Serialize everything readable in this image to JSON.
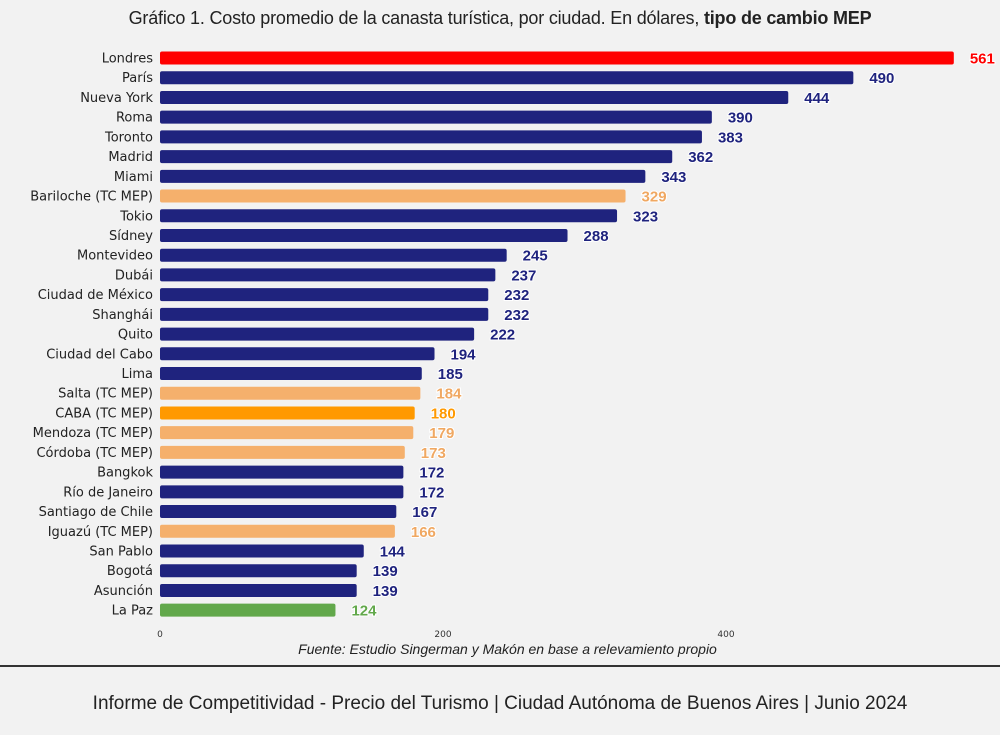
{
  "chart_data": {
    "type": "bar",
    "orientation": "horizontal",
    "title": "Gráfico 1. Costo promedio de la canasta turística, por ciudad. En dólares,",
    "title_bold": "tipo de cambio MEP",
    "xlabel": "",
    "ylabel": "",
    "xlim": [
      0,
      600
    ],
    "xticks": [
      0,
      200,
      400,
      600
    ],
    "grid": false,
    "categories": [
      "Londres",
      "París",
      "Nueva York",
      "Roma",
      "Toronto",
      "Madrid",
      "Miami",
      "Bariloche (TC MEP)",
      "Tokio",
      "Sídney",
      "Montevideo",
      "Dubái",
      "Ciudad de México",
      "Shanghái",
      "Quito",
      "Ciudad del Cabo",
      "Lima",
      "Salta (TC MEP)",
      "CABA (TC MEP)",
      "Mendoza (TC MEP)",
      "Córdoba (TC MEP)",
      "Bangkok",
      "Río de Janeiro",
      "Santiago de Chile",
      "Iguazú (TC MEP)",
      "San Pablo",
      "Bogotá",
      "Asunción",
      "La Paz"
    ],
    "values": [
      561,
      490,
      444,
      390,
      383,
      362,
      343,
      329,
      323,
      288,
      245,
      237,
      232,
      232,
      222,
      194,
      185,
      184,
      180,
      179,
      173,
      172,
      172,
      167,
      166,
      144,
      139,
      139,
      124
    ],
    "groups": [
      "max",
      "intl",
      "intl",
      "intl",
      "intl",
      "intl",
      "intl",
      "arg",
      "intl",
      "intl",
      "intl",
      "intl",
      "intl",
      "intl",
      "intl",
      "intl",
      "intl",
      "arg",
      "caba",
      "arg",
      "arg",
      "intl",
      "intl",
      "intl",
      "arg",
      "intl",
      "intl",
      "intl",
      "min"
    ],
    "colors": {
      "max": "#ff0000",
      "intl": "#1f237e",
      "arg": "#f5b06c",
      "caba": "#ff9900",
      "min": "#62a84b"
    },
    "label_colors": {
      "max": "#ff0000",
      "intl": "#1f237e",
      "arg": "#f0a862",
      "caba": "#ff9900",
      "min": "#62a84b"
    },
    "source": "Fuente: Estudio Singerman y Makón en base a relevamiento propio"
  },
  "footer": "Informe de Competitividad - Precio del Turismo | Ciudad Autónoma de Buenos Aires | Junio 2024"
}
